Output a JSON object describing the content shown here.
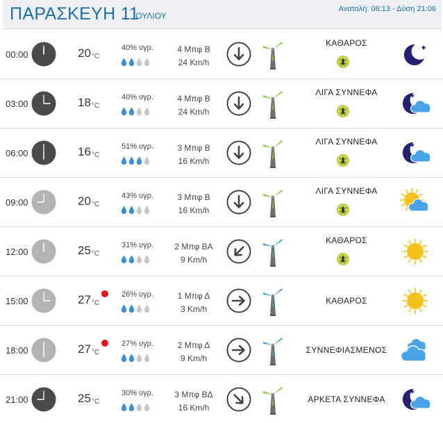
{
  "header": {
    "day": "ΠΑΡΑΣΚΕΥΗ 11",
    "month": "ΙΟΥΛΙΟΥ",
    "sun": "Ανατολή: 06:13  - Δύση 21:06"
  },
  "temp_unit": "°C",
  "rows": [
    {
      "time": "00:00",
      "temp": "20",
      "hot": false,
      "humidity": "40% υγρ.",
      "drops": 2,
      "wind_force": "4 Μπφ Β",
      "wind_speed": "24 Km/h",
      "condition": "ΚΑΘΑΡΟΣ",
      "mosquito": true,
      "icon": "moon-icon"
    },
    {
      "time": "03:00",
      "temp": "18",
      "hot": false,
      "humidity": "40% υγρ.",
      "drops": 2,
      "wind_force": "4 Μπφ Β",
      "wind_speed": "24 Km/h",
      "condition": "ΛΙΓΑ ΣΥΝΝΕΦΑ",
      "mosquito": true,
      "icon": "moon-cloud-icon"
    },
    {
      "time": "06:00",
      "temp": "16",
      "hot": false,
      "humidity": "51% υγρ.",
      "drops": 3,
      "wind_force": "3 Μπφ Β",
      "wind_speed": "16 Km/h",
      "condition": "ΛΙΓΑ ΣΥΝΝΕΦΑ",
      "mosquito": true,
      "icon": "moon-cloud-icon"
    },
    {
      "time": "09:00",
      "temp": "20",
      "hot": false,
      "humidity": "43% υγρ.",
      "drops": 2,
      "wind_force": "3 Μπφ Β",
      "wind_speed": "16 Km/h",
      "condition": "ΛΙΓΑ ΣΥΝΝΕΦΑ",
      "mosquito": true,
      "icon": "sun-cloud-icon"
    },
    {
      "time": "12:00",
      "temp": "25",
      "hot": false,
      "humidity": "31% υγρ.",
      "drops": 2,
      "wind_force": "2 Μπφ ΒΑ",
      "wind_speed": "9 Km/h",
      "condition": "ΚΑΘΑΡΟΣ",
      "mosquito": true,
      "icon": "sun-icon"
    },
    {
      "time": "15:00",
      "temp": "27",
      "hot": true,
      "humidity": "26% υγρ.",
      "drops": 2,
      "wind_force": "1 Μπφ Δ",
      "wind_speed": "3 Km/h",
      "condition": "ΚΑΘΑΡΟΣ",
      "mosquito": false,
      "icon": "sun-icon"
    },
    {
      "time": "18:00",
      "temp": "27",
      "hot": true,
      "humidity": "27% υγρ.",
      "drops": 2,
      "wind_force": "2 Μπφ Δ",
      "wind_speed": "9 Km/h",
      "condition": "ΣΥΝΝΕΦΙΑΣΜΕΝΟΣ",
      "mosquito": false,
      "icon": "clouds-icon"
    },
    {
      "time": "21:00",
      "temp": "25",
      "hot": false,
      "humidity": "30% υγρ.",
      "drops": 2,
      "wind_force": "3 Μπφ ΒΔ",
      "wind_speed": "16 Km/h",
      "condition": "ΑΡΚΕΤΑ ΣΥΝΝΕΦΑ",
      "mosquito": false,
      "icon": "moon-cloud-icon"
    }
  ],
  "colors": {
    "night_clock": "#4a4a4a",
    "day_clock": "#b3b3b3",
    "drop_on": "#3d8fd1",
    "drop_off": "#c3c6ca",
    "blade_green": "#8cc63f",
    "blade_blue": "#4aa0c8",
    "moon": "#24226e",
    "sun": "#f5c21b",
    "cloud": "#49a3e6",
    "hot_dot": "#e4161d"
  }
}
